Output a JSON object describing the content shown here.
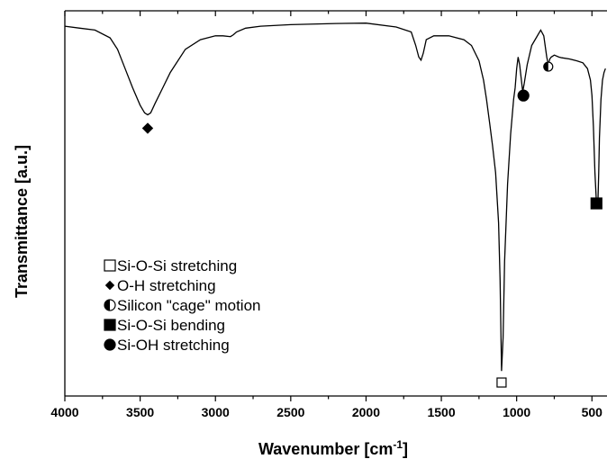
{
  "chart_data": {
    "type": "line",
    "title": "",
    "xlabel": "Wavenumber [cm",
    "xlabel_sup": "-1",
    "xlabel_close": "]",
    "ylabel": "Transmittance [a.u.]",
    "xlim": [
      4000,
      400
    ],
    "x_reversed": true,
    "x_ticks": [
      "4000",
      "3500",
      "3000",
      "2500",
      "2000",
      "1500",
      "1000",
      "500"
    ],
    "grid": false,
    "legend_placement": "bottom-left",
    "ylim": [
      0,
      100
    ],
    "series": [
      {
        "x": [
          4000,
          3900,
          3800,
          3700,
          3650,
          3600,
          3550,
          3500,
          3470,
          3450,
          3430,
          3400,
          3350,
          3300,
          3200,
          3100,
          3000,
          2950,
          2900,
          2880,
          2860,
          2800,
          2700,
          2500,
          2200,
          2000,
          1800,
          1700,
          1670,
          1650,
          1635,
          1620,
          1600,
          1550,
          1450,
          1350,
          1300,
          1250,
          1220,
          1200,
          1180,
          1160,
          1140,
          1120,
          1110,
          1100,
          1090,
          1080,
          1060,
          1040,
          1020,
          1010,
          1000,
          990,
          980,
          970,
          960,
          950,
          930,
          900,
          870,
          840,
          820,
          800,
          790,
          780,
          770,
          750,
          720,
          700,
          650,
          600,
          560,
          530,
          510,
          500,
          490,
          480,
          470,
          465,
          460,
          455,
          450,
          440,
          430,
          420,
          410
        ],
        "y": [
          96,
          95.5,
          95,
          93,
          90,
          85,
          80,
          75.5,
          73.5,
          73,
          73.5,
          76,
          80,
          84,
          90,
          92.5,
          93.5,
          93.5,
          93.3,
          93.8,
          94.5,
          95.5,
          96,
          96.4,
          96.7,
          96.8,
          95.8,
          94.5,
          91,
          88,
          87.2,
          89,
          92.5,
          93.5,
          93.5,
          92.5,
          91,
          87,
          82,
          77,
          71,
          65,
          58,
          45,
          30,
          6.5,
          15,
          35,
          55,
          68,
          77,
          80,
          85,
          88,
          86,
          82.5,
          79,
          81,
          86,
          91,
          93,
          95,
          93.5,
          88,
          86,
          87.5,
          88,
          88.5,
          88,
          87.8,
          87.5,
          87,
          86.5,
          85,
          82,
          78,
          70,
          58,
          50,
          49,
          51,
          58,
          67,
          77,
          82,
          84,
          85
        ]
      }
    ],
    "markers": [
      {
        "shape": "diamond",
        "fill": "filled",
        "x": 3450,
        "y": 69.5
      },
      {
        "shape": "square",
        "fill": "open",
        "x": 1100,
        "y": 3.5
      },
      {
        "shape": "circle",
        "fill": "filled",
        "x": 955,
        "y": 78
      },
      {
        "shape": "circle",
        "fill": "half",
        "x": 790,
        "y": 85.5
      },
      {
        "shape": "square",
        "fill": "filled",
        "x": 470,
        "y": 50
      }
    ],
    "legend": [
      {
        "shape": "square",
        "fill": "open",
        "label": "Si-O-Si stretching"
      },
      {
        "shape": "diamond",
        "fill": "filled",
        "label": "O-H stretching"
      },
      {
        "shape": "circle",
        "fill": "half",
        "label": "Silicon \"cage\" motion"
      },
      {
        "shape": "square",
        "fill": "filled",
        "label": "Si-O-Si bending"
      },
      {
        "shape": "circle",
        "fill": "filled",
        "label": "Si-OH stretching"
      }
    ]
  }
}
